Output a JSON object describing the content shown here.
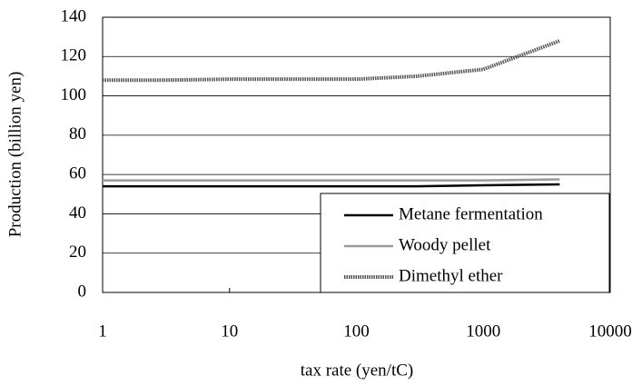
{
  "chart_data": {
    "type": "line",
    "x_label": "tax rate (yen/tC)",
    "y_label": "Production (billion yen)",
    "x": [
      1,
      3,
      10,
      30,
      100,
      300,
      1000,
      4000
    ],
    "series": [
      {
        "name": "Metane fermentation",
        "color": "#000000",
        "style": "solid",
        "values": [
          54,
          54,
          54,
          54,
          54,
          54,
          54.5,
          55
        ]
      },
      {
        "name": "Woody pellet",
        "color": "#999999",
        "style": "solid",
        "values": [
          57,
          57,
          57,
          57,
          57,
          57,
          57,
          57.5
        ]
      },
      {
        "name": "Dimethyl ether",
        "color": "#555555",
        "style": "dotted",
        "values": [
          108,
          108,
          108.5,
          108.5,
          108.5,
          110,
          113.5,
          128
        ]
      }
    ],
    "xscale": "log",
    "xlim": [
      1,
      10000
    ],
    "xticks": [
      1,
      10,
      100,
      1000,
      10000
    ],
    "ylim": [
      0,
      140
    ],
    "yticks": [
      0,
      20,
      40,
      60,
      80,
      100,
      120,
      140
    ],
    "grid": true,
    "legend": "lower right"
  }
}
